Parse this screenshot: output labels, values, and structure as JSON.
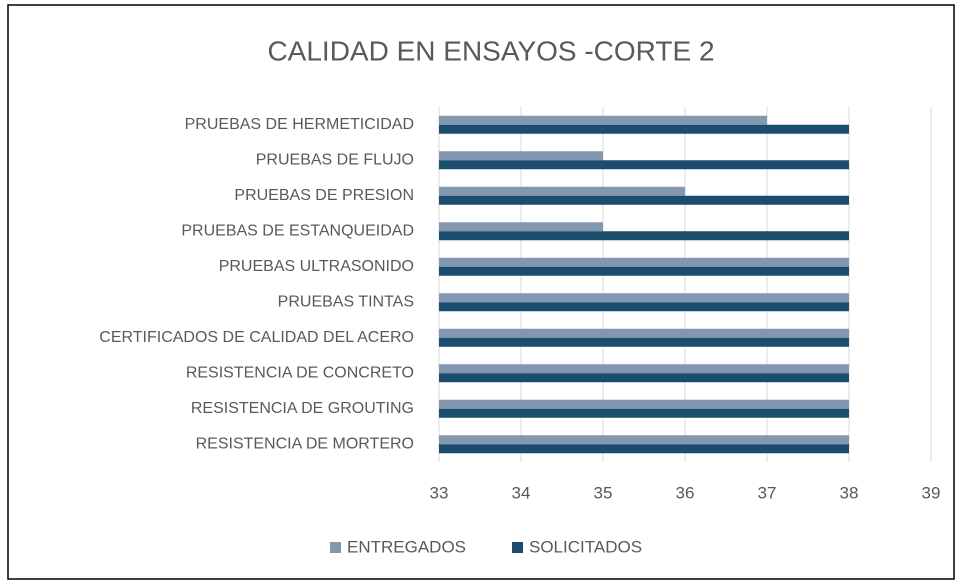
{
  "chart_data": {
    "type": "bar",
    "orientation": "horizontal",
    "title": "CALIDAD EN ENSAYOS -CORTE 2",
    "categories": [
      "PRUEBAS DE HERMETICIDAD",
      "PRUEBAS DE FLUJO",
      "PRUEBAS DE PRESION",
      "PRUEBAS DE ESTANQUEIDAD",
      "PRUEBAS ULTRASONIDO",
      "PRUEBAS TINTAS",
      "CERTIFICADOS DE CALIDAD DEL ACERO",
      "RESISTENCIA DE CONCRETO",
      "RESISTENCIA DE GROUTING",
      "RESISTENCIA DE MORTERO"
    ],
    "series": [
      {
        "name": "ENTREGADOS",
        "color": "#8497b0",
        "values": [
          37,
          35,
          36,
          35,
          38,
          38,
          38,
          38,
          38,
          38
        ]
      },
      {
        "name": "SOLICITADOS",
        "color": "#1b4e6e",
        "values": [
          38,
          38,
          38,
          38,
          38,
          38,
          38,
          38,
          38,
          38
        ]
      }
    ],
    "xlim": [
      33,
      39
    ],
    "xticks": [
      33,
      34,
      35,
      36,
      37,
      38,
      39
    ],
    "grid": true,
    "legend": "bottom"
  }
}
